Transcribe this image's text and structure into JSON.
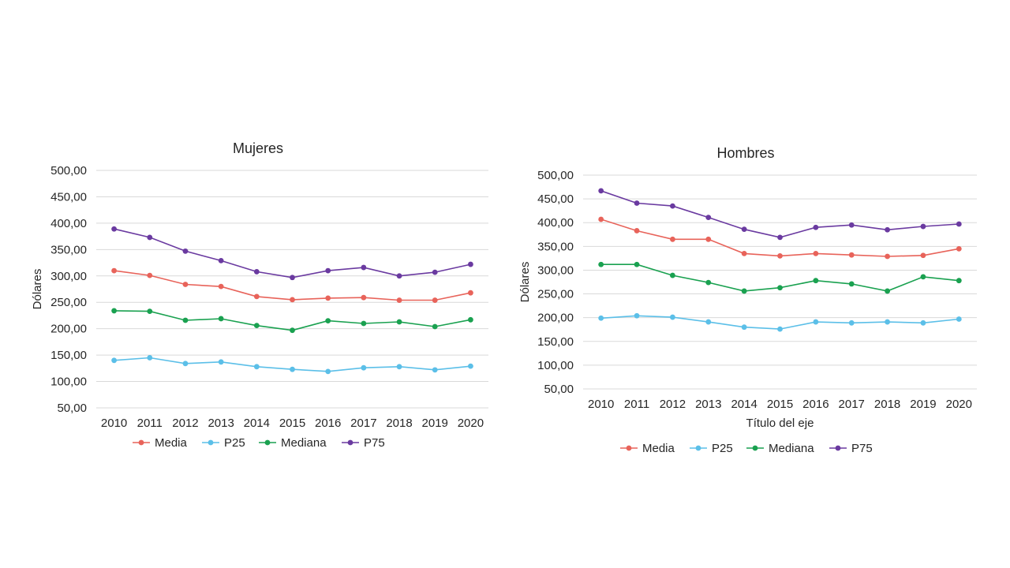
{
  "chart_data": [
    {
      "type": "line",
      "title": "Mujeres",
      "xlabel": "",
      "ylabel": "Dólares",
      "ylim": [
        50,
        500
      ],
      "ytick_labels": [
        "50,00",
        "100,00",
        "150,00",
        "200,00",
        "250,00",
        "300,00",
        "350,00",
        "400,00",
        "450,00",
        "500,00"
      ],
      "categories": [
        "2010",
        "2011",
        "2012",
        "2013",
        "2014",
        "2015",
        "2016",
        "2017",
        "2018",
        "2019",
        "2020"
      ],
      "grid": true,
      "legend": "bottom",
      "series": [
        {
          "name": "Media",
          "color": "#e8635a",
          "values": [
            310,
            301,
            284,
            280,
            261,
            255,
            258,
            259,
            254,
            254,
            268
          ]
        },
        {
          "name": "P25",
          "color": "#5bbfe8",
          "values": [
            140,
            145,
            134,
            137,
            128,
            123,
            119,
            126,
            128,
            122,
            129
          ]
        },
        {
          "name": "Mediana",
          "color": "#1aa150",
          "values": [
            234,
            233,
            216,
            219,
            206,
            197,
            215,
            210,
            213,
            204,
            217
          ]
        },
        {
          "name": "P75",
          "color": "#6a3aa0",
          "values": [
            389,
            373,
            347,
            329,
            308,
            297,
            310,
            316,
            300,
            307,
            322
          ]
        }
      ]
    },
    {
      "type": "line",
      "title": "Hombres",
      "xlabel": "Título  del eje",
      "ylabel": "Dólares",
      "ylim": [
        50,
        500
      ],
      "ytick_labels": [
        "50,00",
        "100,00",
        "150,00",
        "200,00",
        "250,00",
        "300,00",
        "350,00",
        "400,00",
        "450,00",
        "500,00"
      ],
      "categories": [
        "2010",
        "2011",
        "2012",
        "2013",
        "2014",
        "2015",
        "2016",
        "2017",
        "2018",
        "2019",
        "2020"
      ],
      "grid": true,
      "legend": "bottom",
      "series": [
        {
          "name": "Media",
          "color": "#e8635a",
          "values": [
            407,
            383,
            365,
            365,
            335,
            330,
            335,
            332,
            329,
            331,
            345
          ]
        },
        {
          "name": "P25",
          "color": "#5bbfe8",
          "values": [
            199,
            204,
            201,
            191,
            180,
            176,
            191,
            189,
            191,
            189,
            197
          ]
        },
        {
          "name": "Mediana",
          "color": "#1aa150",
          "values": [
            312,
            312,
            289,
            274,
            256,
            263,
            278,
            271,
            256,
            286,
            278
          ]
        },
        {
          "name": "P75",
          "color": "#6a3aa0",
          "values": [
            467,
            441,
            435,
            411,
            386,
            369,
            390,
            395,
            385,
            392,
            397
          ]
        }
      ]
    }
  ]
}
